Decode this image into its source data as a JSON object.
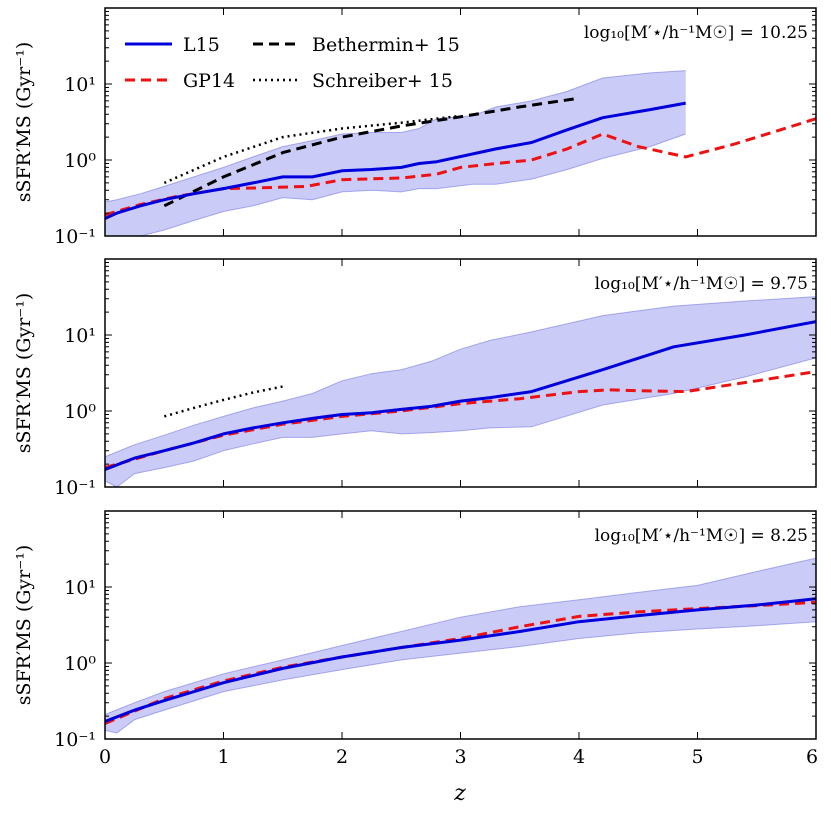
{
  "figure": {
    "x_axis_label": "z",
    "x_ticks": [
      "0",
      "1",
      "2",
      "3",
      "4",
      "5",
      "6"
    ],
    "y_axis_label": "sSFR′MS (Gyr⁻¹)",
    "y_ticks": [
      "10⁻¹",
      "10⁰",
      "10¹"
    ]
  },
  "colors": {
    "L15": "#0000dd",
    "GP14": "#ee1111",
    "Bethermin15": "#000000",
    "Schreiber15": "#000000",
    "band": "#8c8cf0",
    "band_edge": "#7070e0"
  },
  "legend": {
    "entries": [
      {
        "label": "L15",
        "style": "solid"
      },
      {
        "label": "GP14",
        "style": "dashed"
      },
      {
        "label": "Bethermin+ 15",
        "style": "dashed"
      },
      {
        "label": "Schreiber+ 15",
        "style": "dotted"
      }
    ]
  },
  "chart_data": [
    {
      "type": "line",
      "panel": "top",
      "annotation": "log₁₀[M′⋆/h⁻¹M☉] = 10.25",
      "xlabel": "z",
      "ylabel": "sSFR′MS (Gyr⁻¹)",
      "xlim": [
        0,
        6
      ],
      "ylim": [
        0.1,
        100
      ],
      "yscale": "log",
      "series": [
        {
          "name": "L15",
          "x": [
            0,
            0.1,
            0.3,
            0.5,
            0.75,
            1.0,
            1.25,
            1.5,
            1.75,
            2.0,
            2.25,
            2.5,
            2.65,
            2.8,
            3.1,
            3.3,
            3.6,
            3.9,
            4.2,
            4.6,
            4.9
          ],
          "y": [
            0.17,
            0.2,
            0.25,
            0.3,
            0.36,
            0.42,
            0.5,
            0.6,
            0.6,
            0.72,
            0.75,
            0.8,
            0.9,
            0.95,
            1.2,
            1.4,
            1.7,
            2.5,
            3.6,
            4.6,
            5.6
          ]
        },
        {
          "name": "L15_upper",
          "x": [
            0,
            0.1,
            0.3,
            0.5,
            0.75,
            1.0,
            1.25,
            1.5,
            1.75,
            2.0,
            2.25,
            2.5,
            2.65,
            2.8,
            3.1,
            3.3,
            3.6,
            3.9,
            4.2,
            4.6,
            4.9
          ],
          "y": [
            0.28,
            0.3,
            0.36,
            0.45,
            0.6,
            0.8,
            1.1,
            1.5,
            1.8,
            2.2,
            2.3,
            2.3,
            2.6,
            3.5,
            3.8,
            5.0,
            6.0,
            8.0,
            12,
            14,
            15
          ]
        },
        {
          "name": "L15_lower",
          "x": [
            0,
            0.1,
            0.3,
            0.5,
            0.75,
            1.0,
            1.25,
            1.5,
            1.75,
            2.0,
            2.25,
            2.5,
            2.65,
            2.8,
            3.1,
            3.3,
            3.6,
            3.9,
            4.2,
            4.6,
            4.9
          ],
          "y": [
            0.08,
            0.09,
            0.1,
            0.12,
            0.16,
            0.21,
            0.25,
            0.32,
            0.3,
            0.38,
            0.4,
            0.38,
            0.42,
            0.42,
            0.48,
            0.48,
            0.56,
            0.75,
            1.05,
            1.5,
            2.2
          ]
        },
        {
          "name": "GP14",
          "x": [
            0,
            0.3,
            0.6,
            1.0,
            1.3,
            1.7,
            2.0,
            2.5,
            2.8,
            3.0,
            3.3,
            3.6,
            3.9,
            4.2,
            4.5,
            4.9,
            5.3,
            5.7,
            6.0
          ],
          "y": [
            0.19,
            0.26,
            0.33,
            0.42,
            0.43,
            0.45,
            0.55,
            0.58,
            0.65,
            0.8,
            0.9,
            1.0,
            1.4,
            2.2,
            1.5,
            1.1,
            1.6,
            2.5,
            3.5
          ]
        },
        {
          "name": "Bethermin+ 15",
          "x": [
            0.5,
            1.0,
            1.5,
            2.0,
            2.5,
            3.0,
            3.5,
            4.0
          ],
          "y": [
            0.25,
            0.6,
            1.25,
            2.0,
            2.8,
            3.7,
            5.0,
            6.5
          ]
        },
        {
          "name": "Schreiber+ 15",
          "x": [
            0.5,
            1.0,
            1.5,
            2.0,
            2.5,
            3.0
          ],
          "y": [
            0.5,
            1.1,
            2.0,
            2.6,
            3.1,
            3.8
          ]
        }
      ]
    },
    {
      "type": "line",
      "panel": "middle",
      "annotation": "log₁₀[M′⋆/h⁻¹M☉] = 9.75",
      "xlabel": "z",
      "ylabel": "sSFR′MS (Gyr⁻¹)",
      "xlim": [
        0,
        6
      ],
      "ylim": [
        0.1,
        100
      ],
      "yscale": "log",
      "series": [
        {
          "name": "L15",
          "x": [
            0,
            0.25,
            0.5,
            0.75,
            1.0,
            1.25,
            1.5,
            1.75,
            2.0,
            2.25,
            2.5,
            2.75,
            3.0,
            3.25,
            3.6,
            4.2,
            4.8,
            5.4,
            6.0
          ],
          "y": [
            0.17,
            0.24,
            0.3,
            0.38,
            0.5,
            0.6,
            0.7,
            0.8,
            0.9,
            0.95,
            1.05,
            1.15,
            1.35,
            1.5,
            1.8,
            3.5,
            7.0,
            10,
            15
          ]
        },
        {
          "name": "L15_upper",
          "x": [
            0,
            0.25,
            0.5,
            0.75,
            1.0,
            1.25,
            1.5,
            1.75,
            2.0,
            2.25,
            2.5,
            2.75,
            3.0,
            3.25,
            3.6,
            4.2,
            4.8,
            5.4,
            6.0
          ],
          "y": [
            0.25,
            0.36,
            0.48,
            0.65,
            0.85,
            1.1,
            1.35,
            1.7,
            2.5,
            3.1,
            3.5,
            4.5,
            6.5,
            8.5,
            11,
            18,
            24,
            28,
            32
          ]
        },
        {
          "name": "L15_lower",
          "x": [
            0,
            0.1,
            0.25,
            0.5,
            0.75,
            1.0,
            1.25,
            1.5,
            1.75,
            2.0,
            2.25,
            2.5,
            2.75,
            3.0,
            3.25,
            3.6,
            4.2,
            4.8,
            5.4,
            6.0
          ],
          "y": [
            0.12,
            0.1,
            0.15,
            0.18,
            0.22,
            0.3,
            0.37,
            0.45,
            0.45,
            0.5,
            0.55,
            0.5,
            0.52,
            0.55,
            0.6,
            0.62,
            1.2,
            1.7,
            2.8,
            5.0
          ]
        },
        {
          "name": "GP14",
          "x": [
            0,
            0.5,
            1.0,
            1.5,
            2.0,
            2.5,
            3.0,
            3.5,
            4.0,
            4.25,
            4.5,
            4.9,
            5.5,
            6.0
          ],
          "y": [
            0.18,
            0.3,
            0.48,
            0.67,
            0.85,
            1.0,
            1.25,
            1.45,
            1.8,
            1.9,
            1.85,
            1.8,
            2.5,
            3.3
          ]
        },
        {
          "name": "Schreiber+ 15",
          "x": [
            0.5,
            0.75,
            1.0,
            1.25,
            1.5
          ],
          "y": [
            0.85,
            1.1,
            1.4,
            1.75,
            2.1
          ]
        }
      ]
    },
    {
      "type": "line",
      "panel": "bottom",
      "annotation": "log₁₀[M′⋆/h⁻¹M☉] = 8.25",
      "xlabel": "z",
      "ylabel": "sSFR′MS (Gyr⁻¹)",
      "xlim": [
        0,
        6
      ],
      "ylim": [
        0.1,
        100
      ],
      "yscale": "log",
      "series": [
        {
          "name": "L15",
          "x": [
            0,
            0.25,
            0.5,
            1.0,
            1.5,
            2.0,
            2.5,
            3.0,
            3.5,
            4.0,
            4.5,
            5.0,
            5.5,
            6.0
          ],
          "y": [
            0.17,
            0.24,
            0.32,
            0.55,
            0.85,
            1.2,
            1.6,
            2.0,
            2.6,
            3.5,
            4.2,
            5.0,
            5.8,
            7.0
          ]
        },
        {
          "name": "L15_upper",
          "x": [
            0,
            0.25,
            0.5,
            1.0,
            1.5,
            2.0,
            2.5,
            3.0,
            3.5,
            4.0,
            4.5,
            5.0,
            5.5,
            6.0
          ],
          "y": [
            0.21,
            0.3,
            0.42,
            0.72,
            1.1,
            1.7,
            2.6,
            4.0,
            5.5,
            6.8,
            8.5,
            10.5,
            16,
            24
          ]
        },
        {
          "name": "L15_lower",
          "x": [
            0,
            0.1,
            0.25,
            0.5,
            1.0,
            1.5,
            2.0,
            2.5,
            3.0,
            3.5,
            4.0,
            4.5,
            5.0,
            5.5,
            6.0
          ],
          "y": [
            0.13,
            0.12,
            0.18,
            0.24,
            0.42,
            0.6,
            0.82,
            1.1,
            1.35,
            1.65,
            2.1,
            2.5,
            2.8,
            3.1,
            3.5
          ]
        },
        {
          "name": "GP14",
          "x": [
            0,
            0.5,
            1.0,
            1.5,
            2.0,
            2.5,
            3.0,
            3.5,
            4.0,
            4.5,
            5.0,
            5.5,
            6.0
          ],
          "y": [
            0.16,
            0.34,
            0.58,
            0.88,
            1.2,
            1.6,
            2.1,
            3.0,
            4.1,
            4.7,
            5.2,
            5.7,
            6.3
          ]
        }
      ]
    }
  ]
}
